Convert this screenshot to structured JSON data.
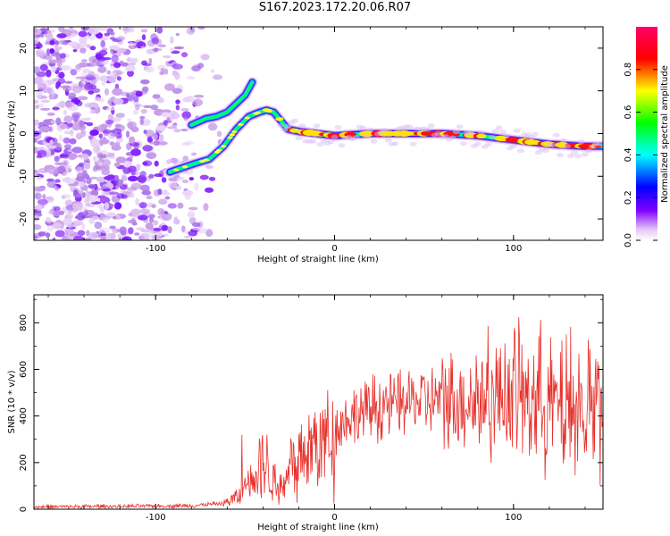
{
  "title": "S167.2023.172.20.06.R07",
  "chart_data": [
    {
      "type": "heatmap",
      "name": "spectrogram",
      "xlabel": "Height of straight line (km)",
      "ylabel": "Frequency (Hz)",
      "xlim": [
        -168,
        150
      ],
      "ylim": [
        -25,
        25
      ],
      "xticks": [
        -100,
        0,
        100
      ],
      "yticks": [
        -20,
        -10,
        0,
        10,
        20
      ],
      "colorbar": {
        "label": "Normalized spectral amplitude",
        "range": [
          0,
          1
        ],
        "ticks": [
          0.0,
          0.2,
          0.4,
          0.6,
          0.8
        ],
        "colormap": [
          "#ffffff",
          "#e6c8f5",
          "#8000ff",
          "#0000ff",
          "#00ffff",
          "#00ff00",
          "#ffff00",
          "#ff0000",
          "#ff0066"
        ]
      },
      "ridges": [
        {
          "x": [
            -92,
            -85,
            -78,
            -70,
            -62,
            -55,
            -48,
            -42,
            -38,
            -34,
            -30,
            -26,
            -20,
            -10,
            0,
            20,
            40,
            60,
            80,
            100,
            120,
            140,
            150
          ],
          "y": [
            -9,
            -8,
            -7,
            -6,
            -3,
            1,
            4,
            5,
            5.5,
            5,
            3,
            1,
            0.5,
            0,
            -0.5,
            0,
            0,
            0,
            -0.5,
            -1.5,
            -2.5,
            -3,
            -3
          ]
        },
        {
          "x": [
            -80,
            -72,
            -66,
            -60,
            -55,
            -50,
            -46
          ],
          "y": [
            2,
            3.5,
            4,
            5,
            7,
            9,
            12
          ]
        }
      ],
      "noise_region_x": [
        -168,
        -68
      ]
    },
    {
      "type": "line",
      "name": "snr",
      "xlabel": "Height of straight line (km)",
      "ylabel": "SNR (10 * v/v)",
      "xlim": [
        -168,
        150
      ],
      "ylim": [
        0,
        920
      ],
      "xticks": [
        -100,
        0,
        100
      ],
      "yticks": [
        0,
        200,
        400,
        600,
        800
      ],
      "color": "#e8302a",
      "envelope": {
        "x": [
          -168,
          -120,
          -80,
          -62,
          -52,
          -46,
          -40,
          -34,
          -28,
          -24,
          -20,
          -15,
          -10,
          -5,
          0,
          5,
          10,
          20,
          30,
          40,
          50,
          60,
          70,
          80,
          90,
          100,
          110,
          120,
          130,
          140,
          150
        ],
        "y": [
          10,
          12,
          15,
          25,
          60,
          140,
          210,
          120,
          90,
          200,
          230,
          250,
          270,
          300,
          340,
          380,
          400,
          430,
          450,
          460,
          470,
          465,
          470,
          480,
          490,
          500,
          480,
          460,
          440,
          430,
          420
        ]
      }
    }
  ]
}
